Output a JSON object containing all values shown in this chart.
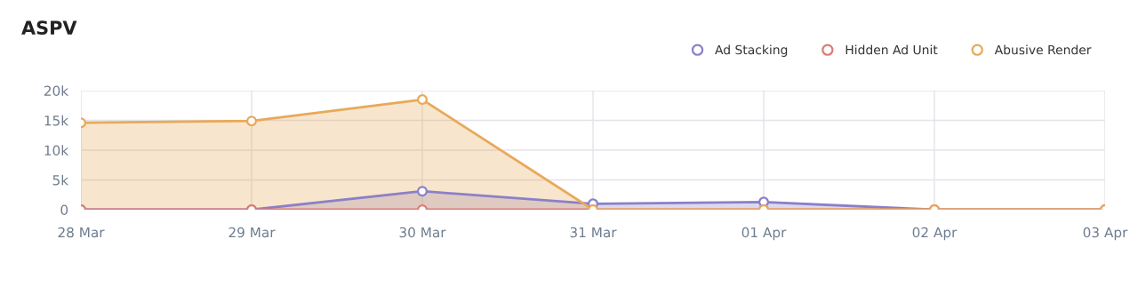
{
  "chart_data": {
    "type": "area",
    "title": "ASPV",
    "categories": [
      "28 Mar",
      "29 Mar",
      "30 Mar",
      "31 Mar",
      "01 Apr",
      "02 Apr",
      "03 Apr"
    ],
    "series": [
      {
        "name": "Ad Stacking",
        "color": "#8a80c8",
        "values": [
          0,
          0,
          3100,
          1000,
          1300,
          0,
          0
        ]
      },
      {
        "name": "Hidden Ad Unit",
        "type": "line",
        "color": "#de7b76",
        "values": [
          0,
          0,
          0,
          0,
          0,
          0,
          0
        ]
      },
      {
        "name": "Abusive Render",
        "color": "#e8a95a",
        "values": [
          14600,
          14900,
          18500,
          0,
          0,
          0,
          0
        ]
      }
    ],
    "ylim": [
      0,
      20000
    ],
    "yticks": [
      {
        "value": 0,
        "label": "0"
      },
      {
        "value": 5000,
        "label": "5k"
      },
      {
        "value": 10000,
        "label": "10k"
      },
      {
        "value": 15000,
        "label": "15k"
      },
      {
        "value": 20000,
        "label": "20k"
      }
    ],
    "grid": true,
    "legend": "top right",
    "marker": "circle",
    "line_style": "solid"
  }
}
